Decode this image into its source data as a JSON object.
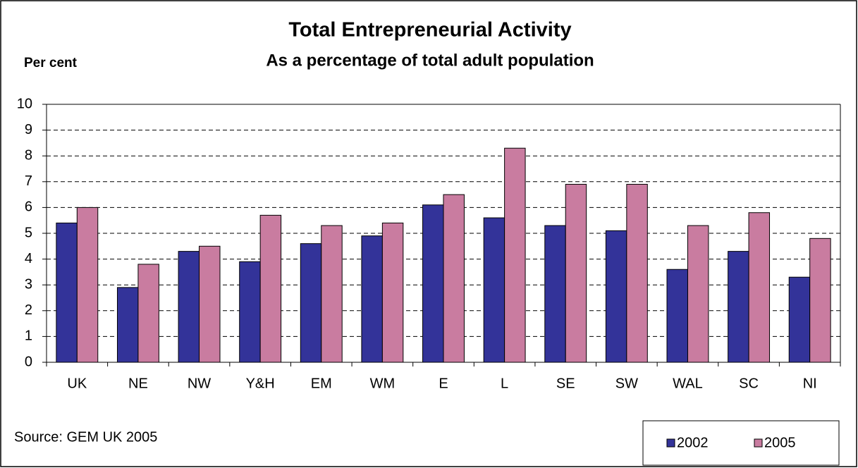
{
  "chart_data": {
    "type": "bar",
    "title": "Total Entrepreneurial Activity",
    "subtitle": "As a percentage of total adult population",
    "y_label": "Per cent",
    "source": "Source: GEM UK 2005",
    "categories": [
      "UK",
      "NE",
      "NW",
      "Y&H",
      "EM",
      "WM",
      "E",
      "L",
      "SE",
      "SW",
      "WAL",
      "SC",
      "NI"
    ],
    "series": [
      {
        "name": "2002",
        "color": "#333399",
        "values": [
          5.4,
          2.9,
          4.3,
          3.9,
          4.6,
          4.9,
          6.1,
          5.6,
          5.3,
          5.1,
          3.6,
          4.3,
          3.3
        ]
      },
      {
        "name": "2005",
        "color": "#c97ca0",
        "values": [
          6.0,
          3.8,
          4.5,
          5.7,
          5.3,
          5.4,
          6.5,
          8.3,
          6.9,
          6.9,
          5.3,
          5.8,
          4.8
        ]
      }
    ],
    "ylim": [
      0,
      10
    ],
    "yticks": [
      0,
      1,
      2,
      3,
      4,
      5,
      6,
      7,
      8,
      9,
      10
    ],
    "grid": true,
    "legend": "bottom-right"
  }
}
